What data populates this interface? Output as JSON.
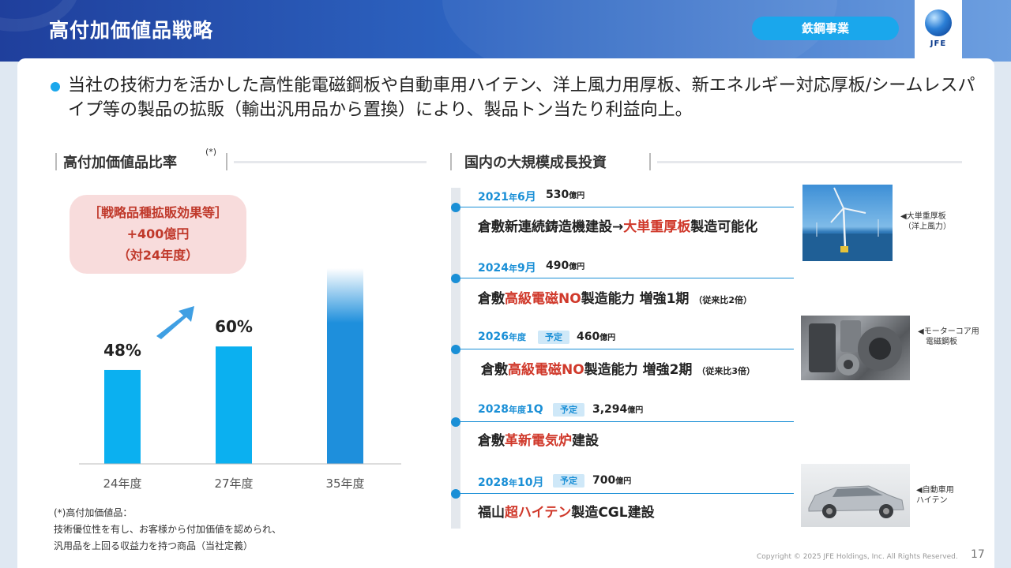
{
  "header": {
    "title": "高付加価値品戦略",
    "segment": "鉄鋼事業",
    "logo": "JFE"
  },
  "intro": "当社の技術力を活かした高性能電磁鋼板や自動車用ハイテン、洋上風力用厚板、新エネルギー対応厚板/シームレスパイプ等の製品の拡販（輸出汎用品から置換）により、製品トン当たり利益向上。",
  "left_section": {
    "heading": "高付加価値品比率",
    "heading_sup": "(*)",
    "effect_lines": [
      "［戦略品種拡販効果等］",
      "+400億円",
      "（対24年度）"
    ],
    "footnote_lines": [
      "(*)高付加価値品：",
      "技術優位性を有し、お客様から付加価値を認められ、",
      "汎用品を上回る収益力を持つ商品（当社定義）"
    ]
  },
  "chart_data": {
    "type": "bar",
    "categories": [
      "24年度",
      "27年度",
      "35年度"
    ],
    "values": [
      48,
      60,
      null
    ],
    "data_labels": [
      "48%",
      "60%",
      ""
    ],
    "title": "",
    "xlabel": "",
    "ylabel": "",
    "ylim": [
      0,
      100
    ],
    "grid": false,
    "colors": [
      "#0bb0f0",
      "#0bb0f0",
      "#1e8fdc"
    ]
  },
  "right_section": {
    "heading": "国内の大規模成長投資",
    "items": [
      {
        "date": "2021",
        "date_unit": "年",
        "date_sub": "6月",
        "tag": "",
        "amount": "530",
        "amount_unit": "億円",
        "desc_pre": "倉敷新連続鋳造機建設→",
        "desc_red": "大単重厚板",
        "desc_post": "製造可能化",
        "desc_small": ""
      },
      {
        "date": "2024",
        "date_unit": "年",
        "date_sub": "9月",
        "tag": "",
        "amount": "490",
        "amount_unit": "億円",
        "desc_pre": "倉敷",
        "desc_red": "高級電磁NO",
        "desc_post": "製造能力 増強1期",
        "desc_small": "（従来比2倍）"
      },
      {
        "date": "2026",
        "date_unit": "年度",
        "date_sub": "",
        "tag": "予定",
        "amount": "460",
        "amount_unit": "億円",
        "desc_pre": "倉敷",
        "desc_red": "高級電磁NO",
        "desc_post": "製造能力 増強2期",
        "desc_small": "（従来比3倍）"
      },
      {
        "date": "2028",
        "date_unit": "年度",
        "date_sub": "1Q",
        "tag": "予定",
        "amount": "3,294",
        "amount_unit": "億円",
        "desc_pre": "倉敷",
        "desc_red": "革新電気炉",
        "desc_post": "建設",
        "desc_small": ""
      },
      {
        "date": "2028",
        "date_unit": "年",
        "date_sub": "10月",
        "tag": "予定",
        "amount": "700",
        "amount_unit": "億円",
        "desc_pre": "福山",
        "desc_red": "超ハイテン",
        "desc_post": "製造CGL建設",
        "desc_small": ""
      }
    ],
    "captions": {
      "wind": [
        "◀大単重厚板",
        "（洋上風力）"
      ],
      "motor": [
        "◀モーターコア用",
        "電磁鋼板"
      ],
      "car": [
        "◀自動車用",
        "ハイテン"
      ]
    }
  },
  "footer": {
    "copyright": "Copyright © 2025 JFE Holdings, Inc. All Rights Reserved.",
    "page": "17"
  }
}
